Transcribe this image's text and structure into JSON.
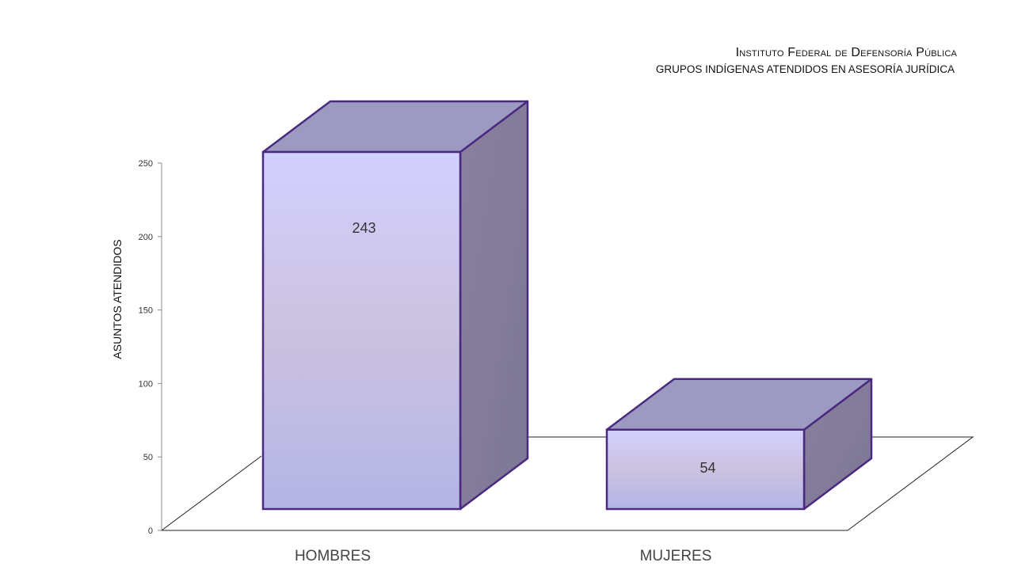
{
  "chart_data": {
    "type": "bar",
    "title": "Instituto Federal de Defensoría Pública",
    "subtitle": "GRUPOS INDÍGENAS ATENDIDOS EN ASESORÍA JURÍDICA",
    "xlabel": "",
    "ylabel": "ASUNTOS ATENDIDOS",
    "categories": [
      "HOMBRES",
      "MUJERES"
    ],
    "values": [
      243,
      54
    ],
    "data_labels": [
      "243",
      "54"
    ],
    "ylim": [
      0,
      250
    ],
    "yticks": [
      "0",
      "50",
      "100",
      "150",
      "200",
      "250"
    ],
    "grid": false,
    "legend": "none",
    "style": "3d-column",
    "colors": {
      "bar_front_top": "#d2d0ff",
      "bar_front_bottom": "#b3b5e6",
      "bar_top": "#9c9ac0",
      "bar_side": "#7c7896",
      "outline": "#4a2a80",
      "floor_line": "#222222"
    }
  }
}
